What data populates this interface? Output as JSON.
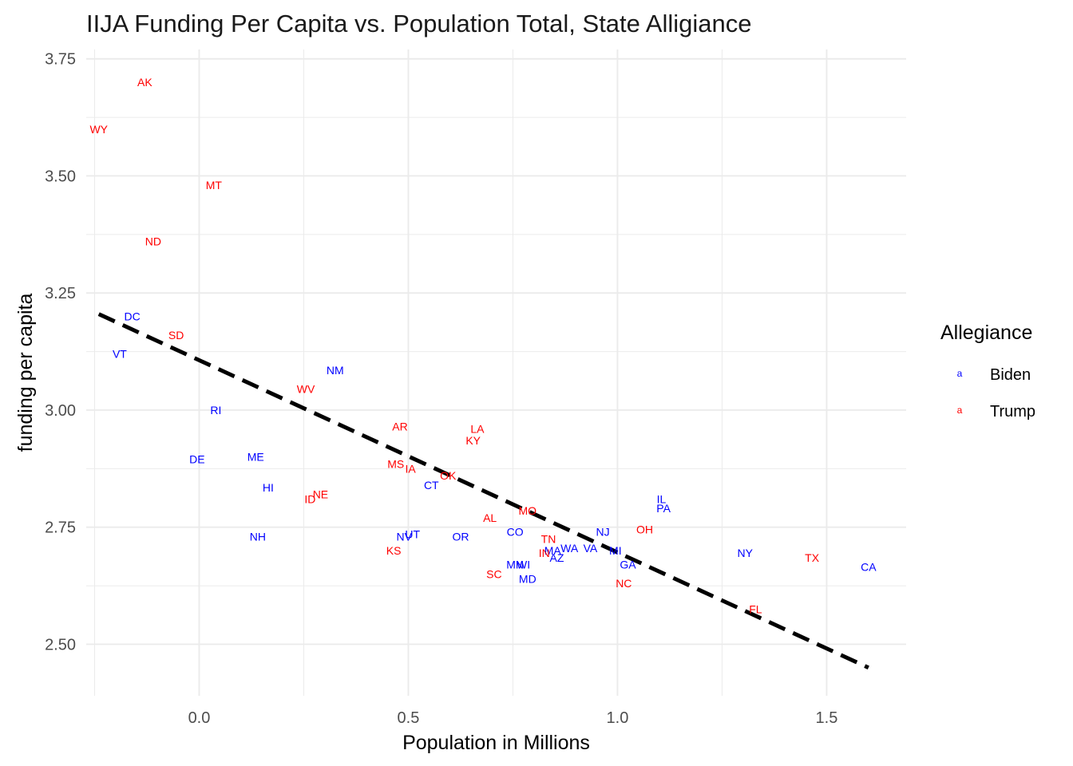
{
  "chart_data": {
    "type": "scatter",
    "title": "IIJA Funding Per Capita vs. Population Total, State Alligiance",
    "xlabel": "Population in Millions",
    "ylabel": "funding per capita",
    "xlim": [
      -0.27,
      1.69
    ],
    "ylim": [
      2.39,
      3.77
    ],
    "x_ticks": [
      0.0,
      0.5,
      1.0,
      1.5
    ],
    "x_tick_labels": [
      "0.0",
      "0.5",
      "1.0",
      "1.5"
    ],
    "y_ticks": [
      2.5,
      2.75,
      3.0,
      3.25,
      3.5,
      3.75
    ],
    "y_tick_labels": [
      "2.50",
      "2.75",
      "3.00",
      "3.25",
      "3.50",
      "3.75"
    ],
    "grid": true,
    "legend": {
      "title": "Allegiance",
      "position": "right",
      "key_glyph": "a",
      "entries": [
        {
          "label": "Biden",
          "color": "#0000ff"
        },
        {
          "label": "Trump",
          "color": "#ff0000"
        }
      ]
    },
    "trend_line": {
      "style": "dashed",
      "color": "#000000",
      "x": [
        -0.24,
        1.6
      ],
      "y": [
        3.205,
        2.45
      ]
    },
    "points": [
      {
        "label": "AK",
        "group": "Trump",
        "x": -0.13,
        "y": 3.7
      },
      {
        "label": "WY",
        "group": "Trump",
        "x": -0.24,
        "y": 3.6
      },
      {
        "label": "MT",
        "group": "Trump",
        "x": 0.035,
        "y": 3.48
      },
      {
        "label": "ND",
        "group": "Trump",
        "x": -0.11,
        "y": 3.36
      },
      {
        "label": "DC",
        "group": "Biden",
        "x": -0.16,
        "y": 3.2
      },
      {
        "label": "SD",
        "group": "Trump",
        "x": -0.055,
        "y": 3.16
      },
      {
        "label": "VT",
        "group": "Biden",
        "x": -0.19,
        "y": 3.12
      },
      {
        "label": "NM",
        "group": "Biden",
        "x": 0.325,
        "y": 3.085
      },
      {
        "label": "WV",
        "group": "Trump",
        "x": 0.255,
        "y": 3.045
      },
      {
        "label": "RI",
        "group": "Biden",
        "x": 0.04,
        "y": 3.0
      },
      {
        "label": "AR",
        "group": "Trump",
        "x": 0.48,
        "y": 2.965
      },
      {
        "label": "LA",
        "group": "Trump",
        "x": 0.665,
        "y": 2.96
      },
      {
        "label": "KY",
        "group": "Trump",
        "x": 0.655,
        "y": 2.935
      },
      {
        "label": "DE",
        "group": "Biden",
        "x": -0.005,
        "y": 2.895
      },
      {
        "label": "ME",
        "group": "Biden",
        "x": 0.135,
        "y": 2.9
      },
      {
        "label": "MS",
        "group": "Trump",
        "x": 0.47,
        "y": 2.885
      },
      {
        "label": "IA",
        "group": "Trump",
        "x": 0.505,
        "y": 2.875
      },
      {
        "label": "OK",
        "group": "Trump",
        "x": 0.595,
        "y": 2.86
      },
      {
        "label": "CT",
        "group": "Biden",
        "x": 0.555,
        "y": 2.84
      },
      {
        "label": "HI",
        "group": "Biden",
        "x": 0.165,
        "y": 2.835
      },
      {
        "label": "NE",
        "group": "Trump",
        "x": 0.29,
        "y": 2.82
      },
      {
        "label": "ID",
        "group": "Trump",
        "x": 0.265,
        "y": 2.81
      },
      {
        "label": "IL",
        "group": "Biden",
        "x": 1.105,
        "y": 2.81
      },
      {
        "label": "PA",
        "group": "Biden",
        "x": 1.11,
        "y": 2.79
      },
      {
        "label": "MO",
        "group": "Trump",
        "x": 0.785,
        "y": 2.785
      },
      {
        "label": "AL",
        "group": "Trump",
        "x": 0.695,
        "y": 2.77
      },
      {
        "label": "NH",
        "group": "Biden",
        "x": 0.14,
        "y": 2.73
      },
      {
        "label": "NV",
        "group": "Biden",
        "x": 0.49,
        "y": 2.73
      },
      {
        "label": "UT",
        "group": "Biden",
        "x": 0.51,
        "y": 2.735
      },
      {
        "label": "OR",
        "group": "Biden",
        "x": 0.625,
        "y": 2.73
      },
      {
        "label": "CO",
        "group": "Biden",
        "x": 0.755,
        "y": 2.74
      },
      {
        "label": "NJ",
        "group": "Biden",
        "x": 0.965,
        "y": 2.74
      },
      {
        "label": "OH",
        "group": "Trump",
        "x": 1.065,
        "y": 2.745
      },
      {
        "label": "TN",
        "group": "Trump",
        "x": 0.835,
        "y": 2.725
      },
      {
        "label": "WA",
        "group": "Biden",
        "x": 0.885,
        "y": 2.705
      },
      {
        "label": "VA",
        "group": "Biden",
        "x": 0.935,
        "y": 2.705
      },
      {
        "label": "MA",
        "group": "Biden",
        "x": 0.845,
        "y": 2.7
      },
      {
        "label": "MI",
        "group": "Biden",
        "x": 0.995,
        "y": 2.7
      },
      {
        "label": "IN",
        "group": "Trump",
        "x": 0.825,
        "y": 2.695
      },
      {
        "label": "AZ",
        "group": "Biden",
        "x": 0.855,
        "y": 2.685
      },
      {
        "label": "KS",
        "group": "Trump",
        "x": 0.465,
        "y": 2.7
      },
      {
        "label": "NY",
        "group": "Biden",
        "x": 1.305,
        "y": 2.695
      },
      {
        "label": "TX",
        "group": "Trump",
        "x": 1.465,
        "y": 2.685
      },
      {
        "label": "CA",
        "group": "Biden",
        "x": 1.6,
        "y": 2.665
      },
      {
        "label": "GA",
        "group": "Biden",
        "x": 1.025,
        "y": 2.67
      },
      {
        "label": "MN",
        "group": "Biden",
        "x": 0.755,
        "y": 2.67
      },
      {
        "label": "WI",
        "group": "Biden",
        "x": 0.775,
        "y": 2.67
      },
      {
        "label": "SC",
        "group": "Trump",
        "x": 0.705,
        "y": 2.65
      },
      {
        "label": "MD",
        "group": "Biden",
        "x": 0.785,
        "y": 2.64
      },
      {
        "label": "NC",
        "group": "Trump",
        "x": 1.015,
        "y": 2.63
      },
      {
        "label": "FL",
        "group": "Trump",
        "x": 1.33,
        "y": 2.575
      }
    ]
  }
}
